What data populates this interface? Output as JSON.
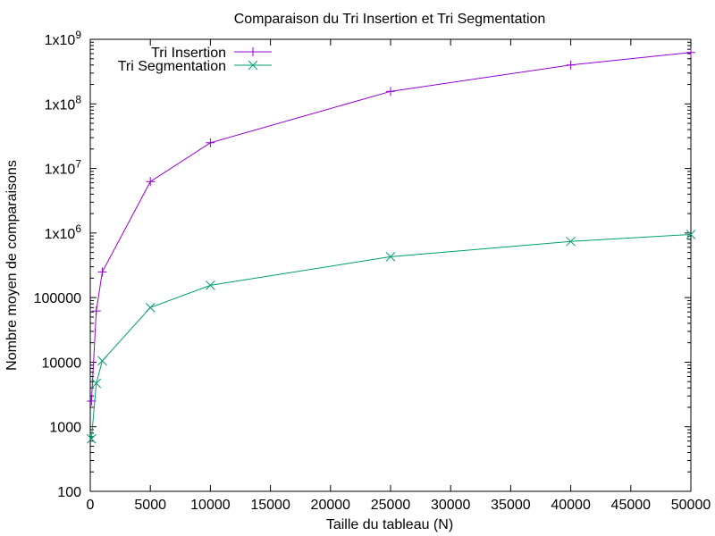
{
  "chart_data": {
    "type": "line",
    "title": "Comparaison du Tri Insertion et Tri Segmentation",
    "xlabel": "Taille du tableau (N)",
    "ylabel": "Nombre moyen de comparaisons",
    "xlim": [
      0,
      50000
    ],
    "ylim": [
      100,
      1000000000
    ],
    "y_scale": "log",
    "grid": false,
    "legend_position": "top-left",
    "x_ticks": [
      {
        "value": 0,
        "label": "0"
      },
      {
        "value": 5000,
        "label": "5000"
      },
      {
        "value": 10000,
        "label": "10000"
      },
      {
        "value": 15000,
        "label": "15000"
      },
      {
        "value": 20000,
        "label": "20000"
      },
      {
        "value": 25000,
        "label": "25000"
      },
      {
        "value": 30000,
        "label": "30000"
      },
      {
        "value": 35000,
        "label": "35000"
      },
      {
        "value": 40000,
        "label": "40000"
      },
      {
        "value": 45000,
        "label": "45000"
      },
      {
        "value": 50000,
        "label": "50000"
      }
    ],
    "y_ticks": [
      {
        "value": 100,
        "label": "100",
        "sup": ""
      },
      {
        "value": 1000,
        "label": "1000",
        "sup": ""
      },
      {
        "value": 10000,
        "label": "10000",
        "sup": ""
      },
      {
        "value": 100000,
        "label": "100000",
        "sup": ""
      },
      {
        "value": 1000000,
        "label": "1x10",
        "sup": "6"
      },
      {
        "value": 10000000,
        "label": "1x10",
        "sup": "7"
      },
      {
        "value": 100000000,
        "label": "1x10",
        "sup": "8"
      },
      {
        "value": 1000000000,
        "label": "1x10",
        "sup": "9"
      }
    ],
    "series": [
      {
        "name": "Tri Insertion",
        "color": "#9400d3",
        "marker": "plus",
        "points": [
          {
            "x": 100,
            "y": 2500
          },
          {
            "x": 500,
            "y": 62000
          },
          {
            "x": 1000,
            "y": 250000
          },
          {
            "x": 5000,
            "y": 6250000
          },
          {
            "x": 10000,
            "y": 25000000
          },
          {
            "x": 25000,
            "y": 156000000
          },
          {
            "x": 40000,
            "y": 400000000
          },
          {
            "x": 50000,
            "y": 625000000
          }
        ]
      },
      {
        "name": "Tri Segmentation",
        "color": "#009e73",
        "marker": "cross",
        "points": [
          {
            "x": 100,
            "y": 650
          },
          {
            "x": 500,
            "y": 4700
          },
          {
            "x": 1000,
            "y": 10500
          },
          {
            "x": 5000,
            "y": 70000
          },
          {
            "x": 10000,
            "y": 155000
          },
          {
            "x": 25000,
            "y": 430000
          },
          {
            "x": 40000,
            "y": 740000
          },
          {
            "x": 50000,
            "y": 950000
          }
        ]
      }
    ]
  }
}
